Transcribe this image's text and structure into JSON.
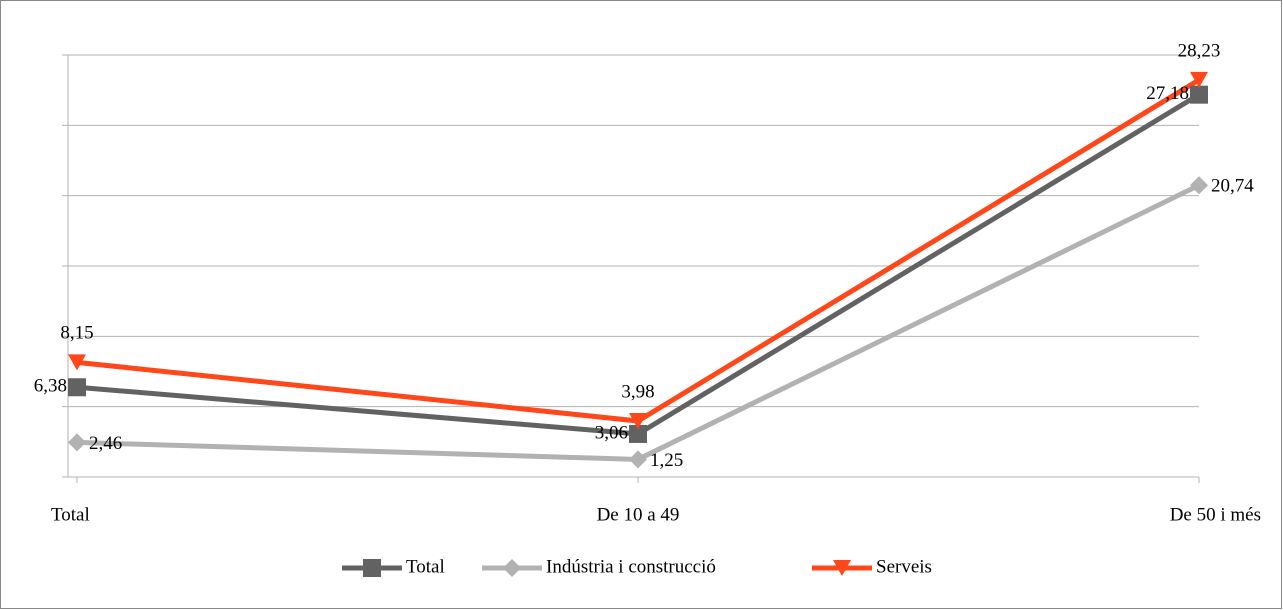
{
  "chart_data": {
    "type": "line",
    "categories": [
      "Total",
      "De 10 a 49",
      "De 50 i més"
    ],
    "series": [
      {
        "name": "Total",
        "color": "#626262",
        "marker": "square",
        "label_position": "left",
        "values": [
          6.38,
          3.06,
          27.18
        ],
        "value_labels": [
          "6,38",
          "3,06",
          "27,18"
        ]
      },
      {
        "name": "Indústria i construcció",
        "color": "#b2b2b2",
        "marker": "diamond",
        "label_position": "right",
        "values": [
          2.46,
          1.25,
          20.74
        ],
        "value_labels": [
          "2,46",
          "1,25",
          "20,74"
        ]
      },
      {
        "name": "Serveis",
        "color": "#ff4719",
        "marker": "triangle-down",
        "label_position": "above",
        "values": [
          8.15,
          3.98,
          28.23
        ],
        "value_labels": [
          "8,15",
          "3,98",
          "28,23"
        ]
      }
    ],
    "ylim": [
      0,
      30
    ],
    "yticks": [
      0,
      5,
      10,
      15,
      20,
      25,
      30
    ],
    "grid": true,
    "legend": "bottom"
  }
}
